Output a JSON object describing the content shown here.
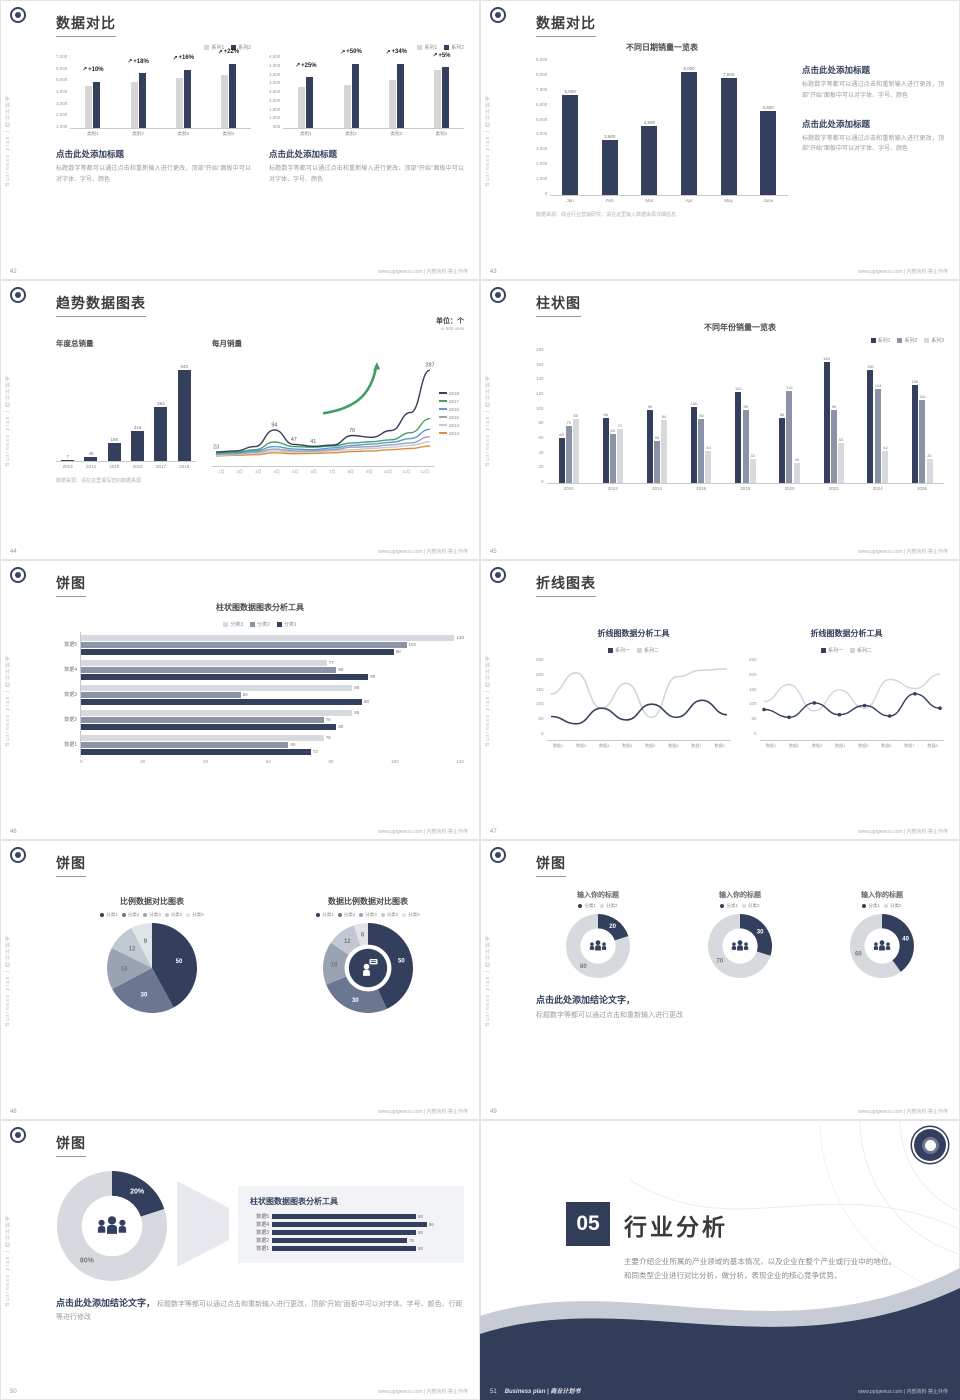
{
  "common": {
    "brand_vertical": "Business plan | 商业计划书",
    "watermark": "www.pptgenius.com | 内部资料 禁止外传",
    "arrow_glyph": "↗",
    "colors": {
      "navy": "#333f5c",
      "mid_gray": "#8b93a7",
      "light_gray": "#d6d9de",
      "green": "#3f9e63"
    }
  },
  "slides": {
    "s42": {
      "page_no": "42",
      "title": "数据对比",
      "chart_a": {
        "show_legend": true,
        "yticks": [
          "7,000",
          "6,000",
          "5,000",
          "4,000",
          "3,000",
          "2,000",
          "1,000"
        ],
        "max": 7000,
        "categories": [
          "类别1",
          "类别2",
          "类别3",
          "类别4"
        ],
        "series": [
          {
            "name": "系列1",
            "color": "#d6d6d6",
            "values": [
              4000,
              4400,
              4700,
              5000
            ]
          },
          {
            "name": "系列2",
            "color": "#333f5c",
            "values": [
              4400,
              5200,
              5500,
              6100
            ]
          }
        ],
        "annotations": [
          "+10%",
          "+18%",
          "+16%",
          "+22%"
        ]
      },
      "chart_b": {
        "show_legend": true,
        "yticks": [
          "4,500",
          "4,000",
          "3,500",
          "3,000",
          "2,500",
          "2,000",
          "1,500",
          "1,000",
          "500"
        ],
        "max": 4500,
        "categories": [
          "类别1",
          "类别2",
          "类别3",
          "类别4"
        ],
        "series": [
          {
            "name": "系列1",
            "color": "#d6d6d6",
            "values": [
              2500,
              2600,
              2900,
              3500
            ]
          },
          {
            "name": "系列2",
            "color": "#333f5c",
            "values": [
              3100,
              3900,
              3900,
              3700
            ]
          }
        ],
        "annotations": [
          "+25%",
          "+50%",
          "+34%",
          "+5%"
        ]
      },
      "block_a": {
        "heading": "点击此处添加标题",
        "body": "标题数字等都可以通过点击和重新输入进行更改，顶部“开始”面板中可以对字体、字号、颜色"
      },
      "block_b": {
        "heading": "点击此处添加标题",
        "body": "标题数字等都可以通过点击和重新输入进行更改，顶部“开始”面板中可以对字体、字号、颜色"
      }
    },
    "s43": {
      "page_no": "43",
      "title": "数据对比",
      "chart": {
        "show_legend": false,
        "title": "不同日期销量一览表",
        "yticks": [
          "9,000",
          "8,000",
          "7,000",
          "6,000",
          "5,000",
          "4,000",
          "3,000",
          "2,000",
          "1,000",
          "0"
        ],
        "max": 9000,
        "categories": [
          "Jan",
          "Feb",
          "Mar",
          "Apr",
          "May",
          "June"
        ],
        "series": [
          {
            "name": "销量",
            "color": "#333f5c",
            "values": [
              6500,
              3600,
              4500,
              8000,
              7600,
              5500
            ],
            "labels": [
              "6,500",
              "3,600",
              "4,500",
              "8,000",
              "7,600",
              "5,500"
            ]
          }
        ]
      },
      "block_a": {
        "heading": "点击此处添加标题",
        "body": "标题数字等都可以通过点击和重新输入进行更改，顶部“开始”面板中可以对字体、字号、颜色"
      },
      "block_b": {
        "heading": "点击此处添加标题",
        "body": "标题数字等都可以通过点击和重新输入进行更改，顶部“开始”面板中可以对字体、字号、颜色"
      },
      "source_note": "数据来源：综合行业营销研究，请在这里输入数据来源详细信息"
    },
    "s44": {
      "page_no": "44",
      "title": "趋势数据图表",
      "unit_note": "单位：个",
      "unit_sub": "in 900 units",
      "bar": {
        "show_legend": false,
        "title": "年度总销量",
        "max": 1100,
        "categories": [
          "2013",
          "2014",
          "2015",
          "2016",
          "2017",
          "2018"
        ],
        "series": [
          {
            "name": "年度总销量",
            "color": "#333f5c",
            "values": [
              7,
              45,
              186,
              316,
              564,
              943
            ],
            "labels": [
              "7",
              "45",
              "186",
              "316",
              "564",
              "943"
            ]
          }
        ]
      },
      "line": {
        "title": "每月销量",
        "legend_side": true,
        "max": 310,
        "x": [
          "1月",
          "2月",
          "3月",
          "4月",
          "5月",
          "6月",
          "7月",
          "8月",
          "9月",
          "10月",
          "11月",
          "12月"
        ],
        "series": [
          {
            "name": "2018",
            "color": "#333f5c",
            "values": [
              23,
              26,
              40,
              94,
              47,
              41,
              45,
              76,
              70,
              92,
              150,
              287
            ]
          },
          {
            "name": "2017",
            "color": "#4c9e6f",
            "values": [
              20,
              22,
              30,
              55,
              40,
              38,
              42,
              52,
              56,
              62,
              85,
              130
            ]
          },
          {
            "name": "2016",
            "color": "#5b9bd5",
            "values": [
              18,
              20,
              26,
              40,
              32,
              30,
              36,
              44,
              48,
              54,
              66,
              96
            ]
          },
          {
            "name": "2015",
            "color": "#9aa3b0",
            "values": [
              15,
              17,
              22,
              32,
              26,
              26,
              30,
              38,
              40,
              46,
              52,
              72
            ]
          },
          {
            "name": "2014",
            "color": "#c6cad1",
            "values": [
              12,
              14,
              18,
              26,
              22,
              22,
              26,
              30,
              34,
              38,
              44,
              56
            ]
          },
          {
            "name": "2013",
            "color": "#e08b3d",
            "values": [
              10,
              12,
              14,
              20,
              17,
              18,
              20,
              24,
              26,
              30,
              34,
              42
            ]
          }
        ],
        "point_labels": {
          "0": "23",
          "3": "94",
          "4": "47",
          "5": "41",
          "7": "76",
          "11": "287"
        },
        "arrow": true,
        "arrow_color": "#3f9e63"
      },
      "source_note": "数据来源：请在这里填写您的数据来源"
    },
    "s45": {
      "page_no": "45",
      "title": "柱状图",
      "chart": {
        "show_legend": true,
        "show_values": true,
        "title": "不同年份销量一览表",
        "yticks": [
          "180",
          "160",
          "140",
          "120",
          "100",
          "80",
          "60",
          "40",
          "20",
          "0"
        ],
        "max": 180,
        "categories": [
          "2010",
          "2012",
          "2014",
          "2016",
          "2018",
          "2020",
          "2022",
          "2024",
          "2026"
        ],
        "series": [
          {
            "name": "系列1",
            "color": "#333f5c",
            "values": [
              60,
              86,
              96,
              100,
              120,
              86,
              160,
              150,
              130
            ]
          },
          {
            "name": "系列2",
            "color": "#8b93a7",
            "values": [
              75,
              65,
              55,
              85,
              96,
              122,
              96,
              124,
              110
            ]
          },
          {
            "name": "系列3",
            "color": "#d6d9de",
            "values": [
              85,
              72,
              84,
              43,
              32,
              26,
              53,
              42,
              32
            ]
          }
        ]
      }
    },
    "s46": {
      "page_no": "46",
      "title": "饼图",
      "chart": {
        "title": "柱状图数据图表分析工具",
        "legend": [
          "分类3",
          "分类2",
          "分类1"
        ],
        "colors": [
          "#d6d9de",
          "#8b93a7",
          "#333f5c"
        ],
        "categories": [
          "数据5",
          "数据4",
          "数据3",
          "数据2",
          "数据1"
        ],
        "rows": [
          [
            120,
            102,
            98
          ],
          [
            77,
            80,
            90
          ],
          [
            85,
            50,
            88
          ],
          [
            85,
            76,
            80
          ],
          [
            76,
            65,
            72
          ]
        ],
        "xticks": [
          "0",
          "20",
          "40",
          "60",
          "80",
          "100",
          "120"
        ],
        "max": 120,
        "show_values": true
      }
    },
    "s47": {
      "page_no": "47",
      "title": "折线图表",
      "chart_a": {
        "title": "折线图数据分析工具",
        "yticks": [
          "250",
          "200",
          "150",
          "100",
          "50",
          "0"
        ],
        "max": 260,
        "x": [
          "数据1",
          "数据2",
          "数据3",
          "数据4",
          "数据5",
          "数据6",
          "数据7",
          "数据8"
        ],
        "series": [
          {
            "name": "系列一",
            "color": "#333f5c",
            "values": [
              63,
              35,
              95,
              50,
              110,
              60,
              125,
              70
            ],
            "width": 1.6
          },
          {
            "name": "系列二",
            "color": "#d2d5db",
            "values": [
              150,
              230,
              95,
              190,
              60,
              215,
              240,
              245
            ],
            "width": 1.6
          }
        ]
      },
      "chart_b": {
        "title": "折线图数据分析工具",
        "yticks": [
          "250",
          "200",
          "150",
          "100",
          "50",
          "0"
        ],
        "max": 260,
        "x": [
          "数据1",
          "数据2",
          "数据3",
          "数据4",
          "数据5",
          "数据6",
          "数据7",
          "数据8"
        ],
        "series": [
          {
            "name": "系列一",
            "color": "#333f5c",
            "values": [
              90,
              60,
              115,
              70,
              105,
              65,
              150,
              95
            ],
            "dots": true,
            "width": 1.4
          },
          {
            "name": "系列二",
            "color": "#d2d5db",
            "values": [
              120,
              185,
              85,
              165,
              95,
              205,
              170,
              225
            ],
            "width": 1.4
          }
        ]
      }
    },
    "s48": {
      "page_no": "48",
      "title": "饼图",
      "pie_a": {
        "title": "比例数据对比图表",
        "type": "pie",
        "legend": [
          "分类1",
          "分类2",
          "分类3",
          "分类4",
          "分类5"
        ],
        "slices": [
          {
            "label": "50",
            "value": 50,
            "color": "#333f5c"
          },
          {
            "label": "30",
            "value": 30,
            "color": "#6b7690"
          },
          {
            "label": "18",
            "value": 18,
            "color": "#9aa3b4"
          },
          {
            "label": "12",
            "value": 12,
            "color": "#c2c8d2"
          },
          {
            "label": "9",
            "value": 9,
            "color": "#e0e3e8"
          }
        ]
      },
      "pie_b": {
        "title": "数据比例数据对比图表",
        "type": "donut",
        "inner": 0.52,
        "center_icon": "person-chat",
        "legend": [
          "分类1",
          "分类2",
          "分类3",
          "分类4",
          "分类5"
        ],
        "slices": [
          {
            "label": "50",
            "value": 50,
            "color": "#333f5c"
          },
          {
            "label": "30",
            "value": 30,
            "color": "#6b7690"
          },
          {
            "label": "18",
            "value": 18,
            "color": "#9aa3b4"
          },
          {
            "label": "12",
            "value": 12,
            "color": "#c2c8d2"
          },
          {
            "label": "6",
            "value": 6,
            "color": "#e0e3e8"
          }
        ]
      }
    },
    "s49": {
      "page_no": "49",
      "title": "饼图",
      "donuts": [
        {
          "title": "输入你的标题",
          "type": "donut",
          "inner": 0.55,
          "center_icon": "people",
          "legend": [
            "分类1",
            "分类2"
          ],
          "slices": [
            {
              "label": "20",
              "value": 20,
              "color": "#333f5c"
            },
            {
              "label": "80",
              "value": 80,
              "color": "#d6d9de"
            }
          ]
        },
        {
          "title": "输入你的标题",
          "type": "donut",
          "inner": 0.55,
          "center_icon": "people",
          "legend": [
            "分类1",
            "分类2"
          ],
          "slices": [
            {
              "label": "30",
              "value": 30,
              "color": "#333f5c"
            },
            {
              "label": "70",
              "value": 70,
              "color": "#d6d9de"
            }
          ]
        },
        {
          "title": "输入你的标题",
          "type": "donut",
          "inner": 0.55,
          "center_icon": "people",
          "legend": [
            "分类1",
            "分类2"
          ],
          "slices": [
            {
              "label": "40",
              "value": 40,
              "color": "#333f5c"
            },
            {
              "label": "60",
              "value": 60,
              "color": "#d6d9de"
            }
          ]
        }
      ],
      "conclusion_heading": "点击此处添加结论文字，",
      "conclusion_body": "标题数字等都可以通过点击和重新输入进行更改"
    },
    "s50": {
      "page_no": "50",
      "title": "饼图",
      "donut": {
        "type": "donut",
        "inner": 0.55,
        "center_icon": "people",
        "label_size": 7,
        "slices": [
          {
            "label": "20%",
            "value": 20,
            "color": "#333f5c"
          },
          {
            "label": "80%",
            "value": 80,
            "color": "#d6d9de"
          }
        ]
      },
      "panel": {
        "title": "柱状图数据图表分析工具",
        "categories": [
          "数据5",
          "数据4",
          "数据3",
          "数据2",
          "数据1"
        ],
        "rows": [
          [
            80
          ],
          [
            86
          ],
          [
            80
          ],
          [
            75
          ],
          [
            80
          ]
        ],
        "colors": [
          "#333f5c"
        ],
        "max": 100,
        "show_values": true
      },
      "conclusion_heading": "点击此处添加结论文字，",
      "conclusion_body": "标题数字等都可以通过点击和重新输入进行更改，顶部“开始”面板中可以对字体、字号、颜色、行距等进行修改"
    },
    "s51": {
      "page_no": "51",
      "number": "05",
      "heading": "行业分析",
      "body": "主要介绍企业所属的产业领域的基本情况，以及企业在整个产业或行业中的地位。和同类型企业进行对比分析，做分析，表现企业的核心竞争优势。",
      "footer_brand": "Business plan | 商业计划书"
    }
  }
}
